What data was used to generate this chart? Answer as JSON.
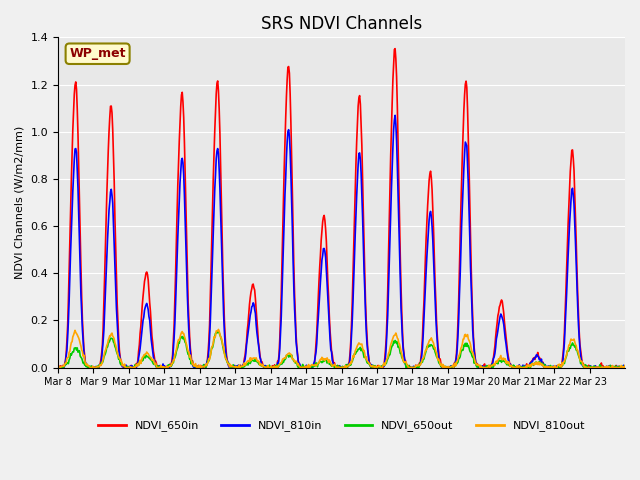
{
  "title": "SRS NDVI Channels",
  "ylabel": "NDVI Channels (W/m2/mm)",
  "annotation_text": "WP_met",
  "annotation_color": "#8B0000",
  "annotation_bg": "#FFFACD",
  "annotation_border": "#8B8000",
  "ylim": [
    0,
    1.4
  ],
  "yticks": [
    0.0,
    0.2,
    0.4,
    0.6,
    0.8,
    1.0,
    1.2,
    1.4
  ],
  "colors": {
    "NDVI_650in": "#FF0000",
    "NDVI_810in": "#0000FF",
    "NDVI_650out": "#00CC00",
    "NDVI_810out": "#FFA500"
  },
  "legend_labels": [
    "NDVI_650in",
    "NDVI_810in",
    "NDVI_650out",
    "NDVI_810out"
  ],
  "x_tick_labels": [
    "Mar 8",
    "Mar 9",
    "Mar 10",
    "Mar 11",
    "Mar 12",
    "Mar 13",
    "Mar 14",
    "Mar 15",
    "Mar 16",
    "Mar 17",
    "Mar 18",
    "Mar 19",
    "Mar 20",
    "Mar 21",
    "Mar 22",
    "Mar 23"
  ],
  "plot_bg": "#E8E8E8",
  "grid_color": "#FFFFFF",
  "linewidth": 1.2,
  "peak_650in": [
    1.2,
    1.1,
    0.4,
    1.15,
    1.2,
    0.35,
    1.27,
    0.64,
    1.14,
    1.34,
    0.82,
    1.2,
    0.28,
    0.05,
    0.91,
    0.0
  ],
  "peak_810in": [
    0.92,
    0.75,
    0.27,
    0.88,
    0.92,
    0.27,
    1.0,
    0.5,
    0.9,
    1.05,
    0.65,
    0.95,
    0.22,
    0.05,
    0.75,
    0.0
  ],
  "peak_650out": [
    0.08,
    0.12,
    0.05,
    0.13,
    0.15,
    0.03,
    0.05,
    0.03,
    0.08,
    0.11,
    0.1,
    0.1,
    0.03,
    0.02,
    0.1,
    0.0
  ],
  "peak_810out": [
    0.15,
    0.14,
    0.06,
    0.15,
    0.16,
    0.04,
    0.06,
    0.04,
    0.1,
    0.14,
    0.12,
    0.14,
    0.04,
    0.02,
    0.12,
    0.0
  ]
}
